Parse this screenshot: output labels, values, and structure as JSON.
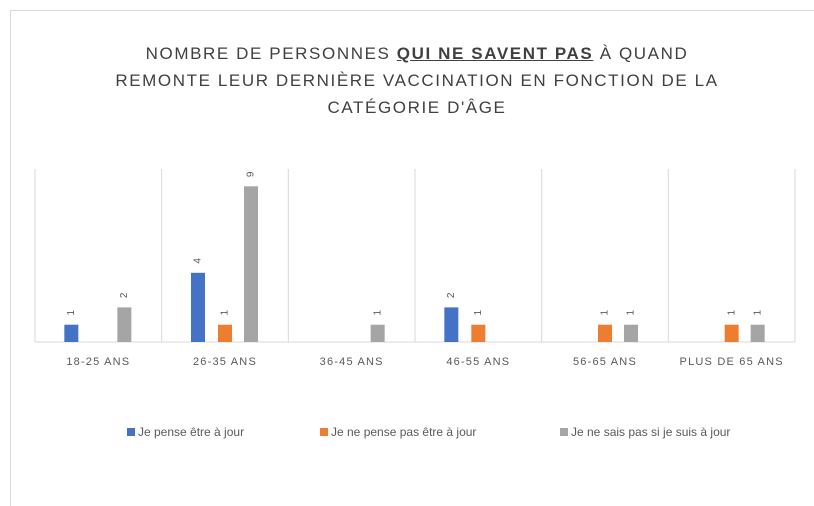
{
  "chart_data": {
    "type": "bar",
    "title": [
      "NOMBRE DE PERSONNES ",
      "QUI NE SAVENT PAS",
      " À QUAND REMONTE LEUR DERNIÈRE VACCINATION  EN FONCTION DE LA CATÉGORIE D'ÂGE"
    ],
    "categories": [
      "18-25 ANS",
      "26-35 ANS",
      "36-45 ANS",
      "46-55 ANS",
      "56-65 ANS",
      "PLUS DE 65 ANS"
    ],
    "series": [
      {
        "name": "Je pense être à jour",
        "color": "#4472c4",
        "values": [
          1,
          4,
          null,
          2,
          null,
          null
        ]
      },
      {
        "name": "Je ne pense pas être à jour",
        "color": "#ed7d31",
        "values": [
          null,
          1,
          null,
          1,
          1,
          1
        ]
      },
      {
        "name": "Je ne sais pas si je suis à jour",
        "color": "#a5a5a5",
        "values": [
          2,
          9,
          1,
          null,
          1,
          1
        ]
      }
    ],
    "ylim": [
      0,
      10
    ]
  }
}
